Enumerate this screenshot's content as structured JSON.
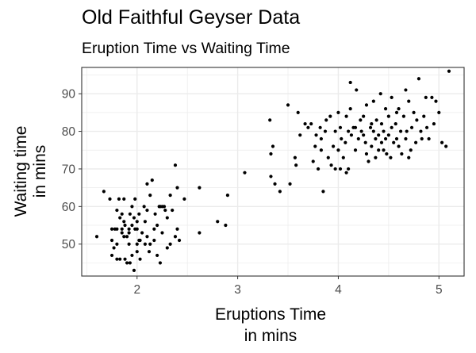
{
  "chart_data": {
    "type": "scatter",
    "title": "Old Faithful Geyser Data",
    "subtitle": "Eruption Time vs Waiting Time",
    "xlabel": [
      "Eruptions Time",
      "in mins"
    ],
    "ylabel": [
      "Waiting time",
      "in mins"
    ],
    "xlim": [
      1.45,
      5.25
    ],
    "ylim": [
      41.5,
      97
    ],
    "x_ticks": [
      2,
      3,
      4,
      5
    ],
    "y_ticks": [
      50,
      60,
      70,
      80,
      90
    ],
    "grid": true,
    "legend": "none",
    "point_color": "#000000",
    "panel_border_color": "#333333",
    "grid_color": "#ebebeb",
    "points": [
      [
        1.6,
        52
      ],
      [
        1.67,
        64
      ],
      [
        1.73,
        62
      ],
      [
        1.75,
        54
      ],
      [
        1.75,
        47
      ],
      [
        1.75,
        51
      ],
      [
        1.77,
        49
      ],
      [
        1.78,
        54
      ],
      [
        1.8,
        50
      ],
      [
        1.8,
        59
      ],
      [
        1.8,
        46
      ],
      [
        1.8,
        54
      ],
      [
        1.82,
        62
      ],
      [
        1.83,
        57
      ],
      [
        1.83,
        46
      ],
      [
        1.85,
        58
      ],
      [
        1.85,
        54
      ],
      [
        1.85,
        53
      ],
      [
        1.87,
        52
      ],
      [
        1.87,
        56
      ],
      [
        1.87,
        62
      ],
      [
        1.88,
        55
      ],
      [
        1.88,
        46
      ],
      [
        1.9,
        45
      ],
      [
        1.9,
        52
      ],
      [
        1.92,
        50
      ],
      [
        1.92,
        54
      ],
      [
        1.92,
        53
      ],
      [
        1.93,
        45
      ],
      [
        1.93,
        58
      ],
      [
        1.95,
        60
      ],
      [
        1.95,
        47
      ],
      [
        1.95,
        55
      ],
      [
        1.97,
        57
      ],
      [
        1.97,
        43
      ],
      [
        1.98,
        54
      ],
      [
        1.98,
        62
      ],
      [
        2.0,
        56
      ],
      [
        2.0,
        50
      ],
      [
        2.0,
        54
      ],
      [
        2.0,
        48
      ],
      [
        2.02,
        58
      ],
      [
        2.02,
        51
      ],
      [
        2.03,
        51
      ],
      [
        2.03,
        46
      ],
      [
        2.05,
        53
      ],
      [
        2.07,
        60
      ],
      [
        2.08,
        50
      ],
      [
        2.08,
        56
      ],
      [
        2.1,
        59
      ],
      [
        2.1,
        66
      ],
      [
        2.1,
        52
      ],
      [
        2.12,
        48
      ],
      [
        2.13,
        63
      ],
      [
        2.13,
        50
      ],
      [
        2.15,
        67
      ],
      [
        2.17,
        51
      ],
      [
        2.17,
        54
      ],
      [
        2.18,
        58
      ],
      [
        2.2,
        55
      ],
      [
        2.2,
        47
      ],
      [
        2.22,
        60
      ],
      [
        2.23,
        60
      ],
      [
        2.23,
        45
      ],
      [
        2.25,
        60
      ],
      [
        2.25,
        53
      ],
      [
        2.27,
        60
      ],
      [
        2.28,
        59
      ],
      [
        2.3,
        57
      ],
      [
        2.3,
        49
      ],
      [
        2.33,
        63
      ],
      [
        2.33,
        50
      ],
      [
        2.35,
        59
      ],
      [
        2.38,
        71
      ],
      [
        2.38,
        52
      ],
      [
        2.4,
        65
      ],
      [
        2.4,
        54
      ],
      [
        2.42,
        51
      ],
      [
        2.47,
        62
      ],
      [
        2.62,
        65
      ],
      [
        2.62,
        53
      ],
      [
        2.8,
        56
      ],
      [
        2.88,
        55
      ],
      [
        2.9,
        63
      ],
      [
        3.07,
        69
      ],
      [
        3.32,
        83
      ],
      [
        3.33,
        74
      ],
      [
        3.33,
        68
      ],
      [
        3.35,
        76
      ],
      [
        3.37,
        66
      ],
      [
        3.42,
        64
      ],
      [
        3.5,
        87
      ],
      [
        3.52,
        66
      ],
      [
        3.57,
        73
      ],
      [
        3.58,
        71
      ],
      [
        3.6,
        85
      ],
      [
        3.62,
        79
      ],
      [
        3.67,
        82
      ],
      [
        3.7,
        81
      ],
      [
        3.73,
        82
      ],
      [
        3.75,
        72
      ],
      [
        3.77,
        76
      ],
      [
        3.78,
        79
      ],
      [
        3.8,
        70
      ],
      [
        3.82,
        81
      ],
      [
        3.83,
        75
      ],
      [
        3.83,
        78
      ],
      [
        3.85,
        64
      ],
      [
        3.87,
        80
      ],
      [
        3.88,
        83
      ],
      [
        3.9,
        73
      ],
      [
        3.92,
        84
      ],
      [
        3.93,
        71
      ],
      [
        3.95,
        76
      ],
      [
        3.97,
        80
      ],
      [
        3.97,
        70
      ],
      [
        4.0,
        75
      ],
      [
        4.0,
        85
      ],
      [
        4.02,
        70
      ],
      [
        4.02,
        81
      ],
      [
        4.03,
        78
      ],
      [
        4.05,
        73
      ],
      [
        4.07,
        77
      ],
      [
        4.08,
        84
      ],
      [
        4.08,
        69
      ],
      [
        4.1,
        70
      ],
      [
        4.1,
        80
      ],
      [
        4.12,
        86
      ],
      [
        4.12,
        93
      ],
      [
        4.13,
        79
      ],
      [
        4.15,
        81
      ],
      [
        4.17,
        81
      ],
      [
        4.17,
        75
      ],
      [
        4.18,
        91
      ],
      [
        4.2,
        78
      ],
      [
        4.22,
        83
      ],
      [
        4.23,
        80
      ],
      [
        4.25,
        84
      ],
      [
        4.25,
        79
      ],
      [
        4.27,
        77
      ],
      [
        4.28,
        87
      ],
      [
        4.28,
        74
      ],
      [
        4.3,
        72
      ],
      [
        4.32,
        81
      ],
      [
        4.33,
        82
      ],
      [
        4.33,
        76
      ],
      [
        4.35,
        88
      ],
      [
        4.35,
        80
      ],
      [
        4.37,
        73
      ],
      [
        4.37,
        78
      ],
      [
        4.38,
        83
      ],
      [
        4.4,
        79
      ],
      [
        4.4,
        75
      ],
      [
        4.42,
        90
      ],
      [
        4.43,
        77
      ],
      [
        4.43,
        82
      ],
      [
        4.45,
        75
      ],
      [
        4.45,
        80
      ],
      [
        4.47,
        78
      ],
      [
        4.47,
        86
      ],
      [
        4.48,
        74
      ],
      [
        4.5,
        84
      ],
      [
        4.5,
        79
      ],
      [
        4.52,
        73
      ],
      [
        4.53,
        89
      ],
      [
        4.53,
        81
      ],
      [
        4.55,
        77
      ],
      [
        4.57,
        82
      ],
      [
        4.58,
        78
      ],
      [
        4.58,
        85
      ],
      [
        4.6,
        76
      ],
      [
        4.6,
        86
      ],
      [
        4.62,
        80
      ],
      [
        4.63,
        74
      ],
      [
        4.65,
        84
      ],
      [
        4.67,
        78
      ],
      [
        4.67,
        91
      ],
      [
        4.68,
        80
      ],
      [
        4.7,
        73
      ],
      [
        4.7,
        88
      ],
      [
        4.72,
        75
      ],
      [
        4.73,
        81
      ],
      [
        4.75,
        85
      ],
      [
        4.77,
        77
      ],
      [
        4.78,
        83
      ],
      [
        4.8,
        94
      ],
      [
        4.82,
        80
      ],
      [
        4.83,
        78
      ],
      [
        4.85,
        84
      ],
      [
        4.87,
        89
      ],
      [
        4.88,
        81
      ],
      [
        4.9,
        78
      ],
      [
        4.93,
        89
      ],
      [
        4.95,
        82
      ],
      [
        4.97,
        88
      ],
      [
        5.0,
        85
      ],
      [
        5.03,
        77
      ],
      [
        5.07,
        76
      ],
      [
        5.1,
        96
      ]
    ]
  }
}
